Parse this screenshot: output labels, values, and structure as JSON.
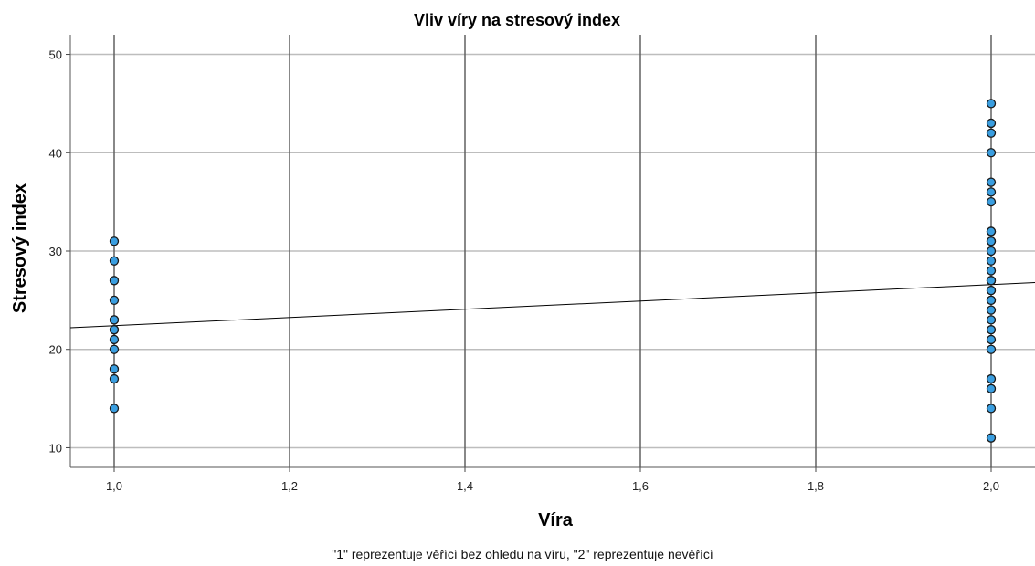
{
  "chart_data": {
    "type": "scatter",
    "title": "Vliv víry na stresový index",
    "xlabel": "Víra",
    "ylabel": "Stresový index",
    "footnote": "\"1\" reprezentuje věřící bez ohledu na víru, \"2\" reprezentuje nevěřící",
    "xlim": [
      0.95,
      2.05
    ],
    "ylim": [
      8,
      52
    ],
    "x_ticks": [
      1.0,
      1.2,
      1.4,
      1.6,
      1.8,
      2.0
    ],
    "x_tick_labels": [
      "1,0",
      "1,2",
      "1,4",
      "1,6",
      "1,8",
      "2,0"
    ],
    "y_ticks": [
      10,
      20,
      30,
      40,
      50
    ],
    "y_tick_labels": [
      "10",
      "20",
      "30",
      "40",
      "50"
    ],
    "grid": true,
    "colors": {
      "point_fill": "#3a9ee0",
      "point_stroke": "#1a1a1a",
      "fit_line": "#000000",
      "grid": "#bdbdbd",
      "vgrid": "#606060"
    },
    "series": [
      {
        "x": [
          1,
          1,
          1,
          1,
          1,
          1,
          1,
          1,
          1,
          1,
          1,
          1,
          1,
          2,
          2,
          2,
          2,
          2,
          2,
          2,
          2,
          2,
          2,
          2,
          2,
          2,
          2,
          2,
          2,
          2,
          2,
          2,
          2,
          2,
          2,
          2,
          2,
          2,
          2,
          2,
          2,
          2
        ],
        "y": [
          31,
          29,
          27,
          25,
          23,
          22,
          22,
          21,
          20,
          18,
          17,
          14,
          23,
          45,
          43,
          42,
          40,
          37,
          36,
          35,
          32,
          31,
          30,
          29,
          28,
          27,
          26,
          25,
          24,
          23,
          22,
          21,
          20,
          17,
          16,
          14,
          11,
          32,
          31,
          27,
          26,
          25
        ]
      }
    ],
    "fit_line": {
      "x": [
        0.95,
        2.05
      ],
      "y": [
        22.2,
        26.8
      ]
    }
  }
}
